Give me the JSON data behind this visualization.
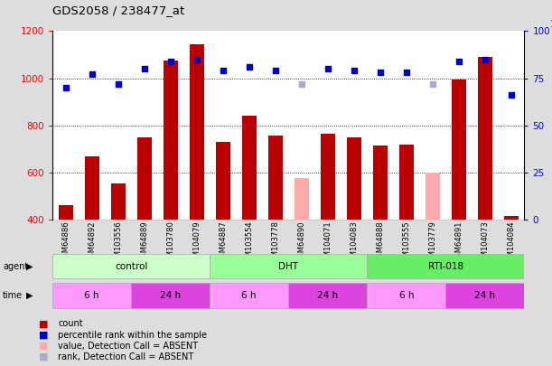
{
  "title": "GDS2058 / 238477_at",
  "samples": [
    "GSM64886",
    "GSM64892",
    "GSM103556",
    "GSM64889",
    "GSM103780",
    "GSM104079",
    "GSM64887",
    "GSM103554",
    "GSM103778",
    "GSM64890",
    "GSM104071",
    "GSM104083",
    "GSM64888",
    "GSM103555",
    "GSM103779",
    "GSM64891",
    "GSM104073",
    "GSM104084"
  ],
  "counts": [
    460,
    670,
    555,
    750,
    1075,
    1145,
    730,
    840,
    755,
    575,
    765,
    750,
    715,
    720,
    600,
    995,
    1090,
    415
  ],
  "counts_absent": [
    false,
    false,
    false,
    false,
    false,
    false,
    false,
    false,
    false,
    true,
    false,
    false,
    false,
    false,
    true,
    false,
    false,
    false
  ],
  "percentile_ranks_pct": [
    70,
    77,
    72,
    80,
    84,
    85,
    79,
    81,
    79,
    72,
    80,
    79,
    78,
    78,
    72,
    84,
    85,
    66
  ],
  "ranks_absent": [
    false,
    false,
    false,
    false,
    false,
    false,
    false,
    false,
    false,
    true,
    false,
    false,
    false,
    false,
    true,
    false,
    false,
    false
  ],
  "ylim_left": [
    400,
    1200
  ],
  "ylim_right": [
    0,
    100
  ],
  "yticks_left": [
    400,
    600,
    800,
    1000,
    1200
  ],
  "yticks_right": [
    0,
    25,
    50,
    75,
    100
  ],
  "groups": [
    {
      "label": "control",
      "start": 0,
      "end": 6,
      "color": "#ccffcc"
    },
    {
      "label": "DHT",
      "start": 6,
      "end": 12,
      "color": "#99ff99"
    },
    {
      "label": "RTI-018",
      "start": 12,
      "end": 18,
      "color": "#66ee66"
    }
  ],
  "times": [
    {
      "label": "6 h",
      "start": 0,
      "end": 3,
      "color": "#ff99ff"
    },
    {
      "label": "24 h",
      "start": 3,
      "end": 6,
      "color": "#dd44dd"
    },
    {
      "label": "6 h",
      "start": 6,
      "end": 9,
      "color": "#ff99ff"
    },
    {
      "label": "24 h",
      "start": 9,
      "end": 12,
      "color": "#dd44dd"
    },
    {
      "label": "6 h",
      "start": 12,
      "end": 15,
      "color": "#ff99ff"
    },
    {
      "label": "24 h",
      "start": 15,
      "end": 18,
      "color": "#dd44dd"
    }
  ],
  "bar_color_present": "#bb0000",
  "bar_color_absent": "#ffaaaa",
  "dot_color_present": "#0000cc",
  "dot_color_absent": "#aaaacc",
  "bar_width": 0.55,
  "bg_color": "#dddddd",
  "plot_bg": "#ffffff",
  "legend_items": [
    {
      "label": "count",
      "color": "#bb0000"
    },
    {
      "label": "percentile rank within the sample",
      "color": "#0000cc"
    },
    {
      "label": "value, Detection Call = ABSENT",
      "color": "#ffaaaa"
    },
    {
      "label": "rank, Detection Call = ABSENT",
      "color": "#aaaacc"
    }
  ]
}
